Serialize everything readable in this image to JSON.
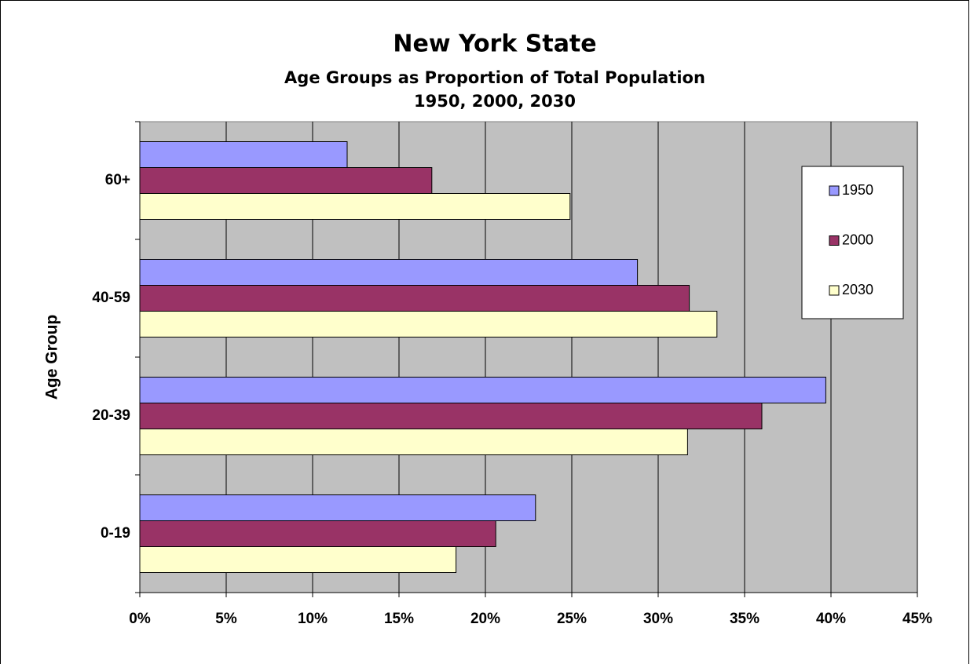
{
  "chart_data": {
    "type": "hbar",
    "title": "New York State",
    "subtitle": [
      "Age Groups as Proportion of Total Population",
      "1950, 2000, 2030"
    ],
    "y_label": "Age Group",
    "categories": [
      "0-19",
      "20-39",
      "40-59",
      "60+"
    ],
    "series": [
      {
        "name": "1950",
        "color": "#9999ff",
        "values": [
          22.9,
          39.7,
          28.8,
          12.0
        ]
      },
      {
        "name": "2000",
        "color": "#993366",
        "values": [
          20.6,
          36.0,
          31.8,
          16.9
        ]
      },
      {
        "name": "2030",
        "color": "#ffffcc",
        "values": [
          18.3,
          31.7,
          33.4,
          24.9
        ]
      }
    ],
    "xlim": [
      0,
      45
    ],
    "xticks": [
      {
        "value": 0,
        "label": "0%"
      },
      {
        "value": 5,
        "label": "5%"
      },
      {
        "value": 10,
        "label": "10%"
      },
      {
        "value": 15,
        "label": "15%"
      },
      {
        "value": 20,
        "label": "20%"
      },
      {
        "value": 25,
        "label": "25%"
      },
      {
        "value": 30,
        "label": "30%"
      },
      {
        "value": 35,
        "label": "35%"
      },
      {
        "value": 40,
        "label": "40%"
      },
      {
        "value": 45,
        "label": "45%"
      }
    ],
    "grid": true,
    "legend": "right",
    "plot_background": "#c0c0c0"
  }
}
